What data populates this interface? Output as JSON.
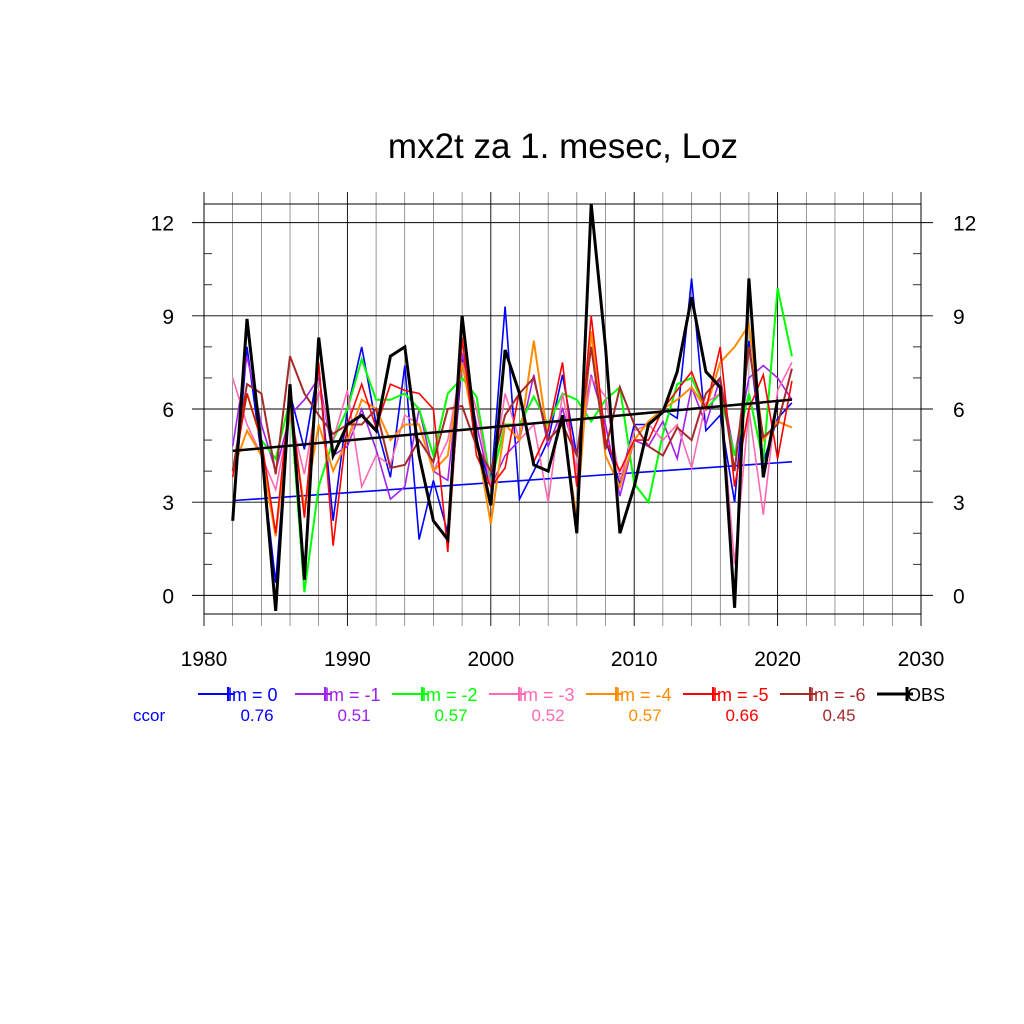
{
  "chart_data": {
    "type": "line",
    "title": "mx2t za 1. mesec, Loz",
    "xlim": [
      1980,
      2030
    ],
    "ylim": [
      -0.6,
      12.6
    ],
    "xticks": [
      1980,
      1990,
      2000,
      2010,
      2020,
      2030
    ],
    "xtick_labels": [
      "1980",
      "1990",
      "2000",
      "2010",
      "2020",
      "2030"
    ],
    "yticks": [
      0,
      3,
      6,
      9,
      12
    ],
    "ytick_labels": [
      "0",
      "3",
      "6",
      "9",
      "12"
    ],
    "grid": true,
    "legend_position": "bottom",
    "x": [
      1982,
      1983,
      1984,
      1985,
      1986,
      1987,
      1988,
      1989,
      1990,
      1991,
      1992,
      1993,
      1994,
      1995,
      1996,
      1997,
      1998,
      1999,
      2000,
      2001,
      2002,
      2003,
      2004,
      2005,
      2006,
      2007,
      2008,
      2009,
      2010,
      2011,
      2012,
      2013,
      2014,
      2015,
      2016,
      2017,
      2018,
      2019,
      2020,
      2021
    ],
    "series": [
      {
        "name": "lm = 0",
        "color": "#0000ff",
        "width": 1.6,
        "ccor": "0.76",
        "values": [
          2.5,
          8.0,
          4.5,
          0.4,
          6.5,
          4.7,
          7.4,
          2.4,
          6.0,
          8.0,
          5.5,
          3.8,
          7.4,
          1.8,
          3.7,
          2.0,
          7.6,
          5.0,
          3.5,
          9.3,
          3.1,
          4.0,
          5.0,
          7.1,
          4.5,
          8.0,
          5.0,
          3.6,
          5.5,
          5.5,
          6.0,
          5.7,
          10.2,
          5.3,
          5.8,
          3.0,
          8.2,
          4.3,
          5.7,
          6.2
        ],
        "trend": [
          3.05,
          4.3
        ]
      },
      {
        "name": "lm = -1",
        "color": "#a020f0",
        "width": 1.6,
        "ccor": "0.51",
        "values": [
          4.8,
          7.7,
          5.5,
          4.0,
          5.8,
          6.3,
          7.0,
          4.5,
          4.8,
          6.0,
          4.7,
          3.1,
          3.5,
          6.0,
          4.0,
          3.7,
          7.8,
          5.5,
          3.5,
          4.5,
          5.0,
          7.1,
          4.8,
          6.0,
          4.5,
          7.1,
          5.5,
          3.2,
          5.0,
          4.8,
          5.6,
          4.4,
          6.7,
          5.5,
          7.0,
          4.5,
          7.0,
          7.4,
          7.0,
          6.3
        ],
        "trend": null
      },
      {
        "name": "lm = -2",
        "color": "#00ff00",
        "width": 2.0,
        "ccor": "0.57",
        "values": [
          4.0,
          6.5,
          5.0,
          4.4,
          6.3,
          0.1,
          3.5,
          5.0,
          6.0,
          7.6,
          6.3,
          6.3,
          6.5,
          6.0,
          4.5,
          6.5,
          7.0,
          6.4,
          3.6,
          5.5,
          5.5,
          6.4,
          5.5,
          6.5,
          6.3,
          5.6,
          6.3,
          6.7,
          3.6,
          3.0,
          5.2,
          6.8,
          7.0,
          6.0,
          6.5,
          4.5,
          6.5,
          4.3,
          9.9,
          7.7
        ],
        "trend": null
      },
      {
        "name": "lm = -3",
        "color": "#ff69b4",
        "width": 1.6,
        "ccor": "0.52",
        "values": [
          7.0,
          5.5,
          4.5,
          3.4,
          5.8,
          3.9,
          6.6,
          5.0,
          6.6,
          3.5,
          4.5,
          4.2,
          5.8,
          5.5,
          4.0,
          5.0,
          7.5,
          6.0,
          3.5,
          6.5,
          5.0,
          5.5,
          3.0,
          6.5,
          4.0,
          7.0,
          6.4,
          3.7,
          5.3,
          5.5,
          5.0,
          5.5,
          4.1,
          6.2,
          6.5,
          1.0,
          6.0,
          2.6,
          6.6,
          7.5
        ],
        "trend": null
      },
      {
        "name": "lm = -4",
        "color": "#ff8c00",
        "width": 2.0,
        "ccor": "0.57",
        "values": [
          4.0,
          5.3,
          4.5,
          1.9,
          6.0,
          2.8,
          5.5,
          4.0,
          5.0,
          6.3,
          6.0,
          5.0,
          5.5,
          5.5,
          4.0,
          4.5,
          7.5,
          5.0,
          2.3,
          5.5,
          5.0,
          8.2,
          5.0,
          5.5,
          2.5,
          8.5,
          4.5,
          3.5,
          5.0,
          5.6,
          6.0,
          6.3,
          6.7,
          6.0,
          7.5,
          8.0,
          8.7,
          5.0,
          5.6,
          5.4
        ],
        "trend": null
      },
      {
        "name": "lm = -5",
        "color": "#ff0000",
        "width": 1.6,
        "ccor": "0.66",
        "values": [
          3.8,
          6.5,
          5.0,
          2.0,
          6.5,
          2.5,
          7.5,
          1.6,
          5.5,
          6.8,
          5.4,
          6.8,
          6.6,
          6.5,
          6.0,
          1.4,
          8.3,
          4.5,
          3.5,
          4.1,
          6.6,
          4.3,
          5.3,
          7.5,
          3.5,
          9.0,
          5.0,
          4.0,
          5.0,
          5.0,
          6.0,
          6.6,
          7.2,
          6.0,
          8.0,
          3.5,
          6.0,
          7.1,
          4.4,
          6.9
        ],
        "trend": null
      },
      {
        "name": "lm = -6",
        "color": "#a52a2a",
        "width": 2.0,
        "ccor": "0.45",
        "values": [
          4.0,
          6.8,
          6.5,
          3.9,
          7.7,
          6.5,
          5.8,
          5.2,
          5.5,
          5.5,
          6.0,
          4.1,
          4.2,
          5.0,
          4.3,
          6.0,
          6.1,
          4.8,
          4.0,
          5.8,
          6.5,
          7.0,
          5.0,
          5.5,
          4.5,
          8.0,
          4.7,
          6.7,
          5.5,
          4.8,
          4.5,
          5.4,
          5.0,
          6.5,
          7.0,
          4.0,
          8.0,
          5.1,
          5.5,
          7.3
        ],
        "trend": null
      },
      {
        "name": "OBS",
        "color": "#000000",
        "width": 3.0,
        "ccor": null,
        "values": [
          2.4,
          8.9,
          4.8,
          -0.5,
          6.8,
          0.5,
          8.3,
          4.5,
          5.5,
          5.8,
          5.3,
          7.7,
          8.0,
          4.5,
          2.4,
          1.8,
          9.0,
          5.0,
          2.9,
          7.9,
          6.5,
          4.2,
          4.0,
          5.8,
          2.0,
          12.6,
          8.0,
          2.0,
          3.5,
          5.5,
          5.9,
          7.2,
          9.6,
          7.2,
          6.7,
          -0.4,
          10.2,
          3.8,
          6.3,
          null
        ],
        "trend": [
          4.65,
          6.3
        ]
      }
    ],
    "ccor_label": "ccor"
  }
}
